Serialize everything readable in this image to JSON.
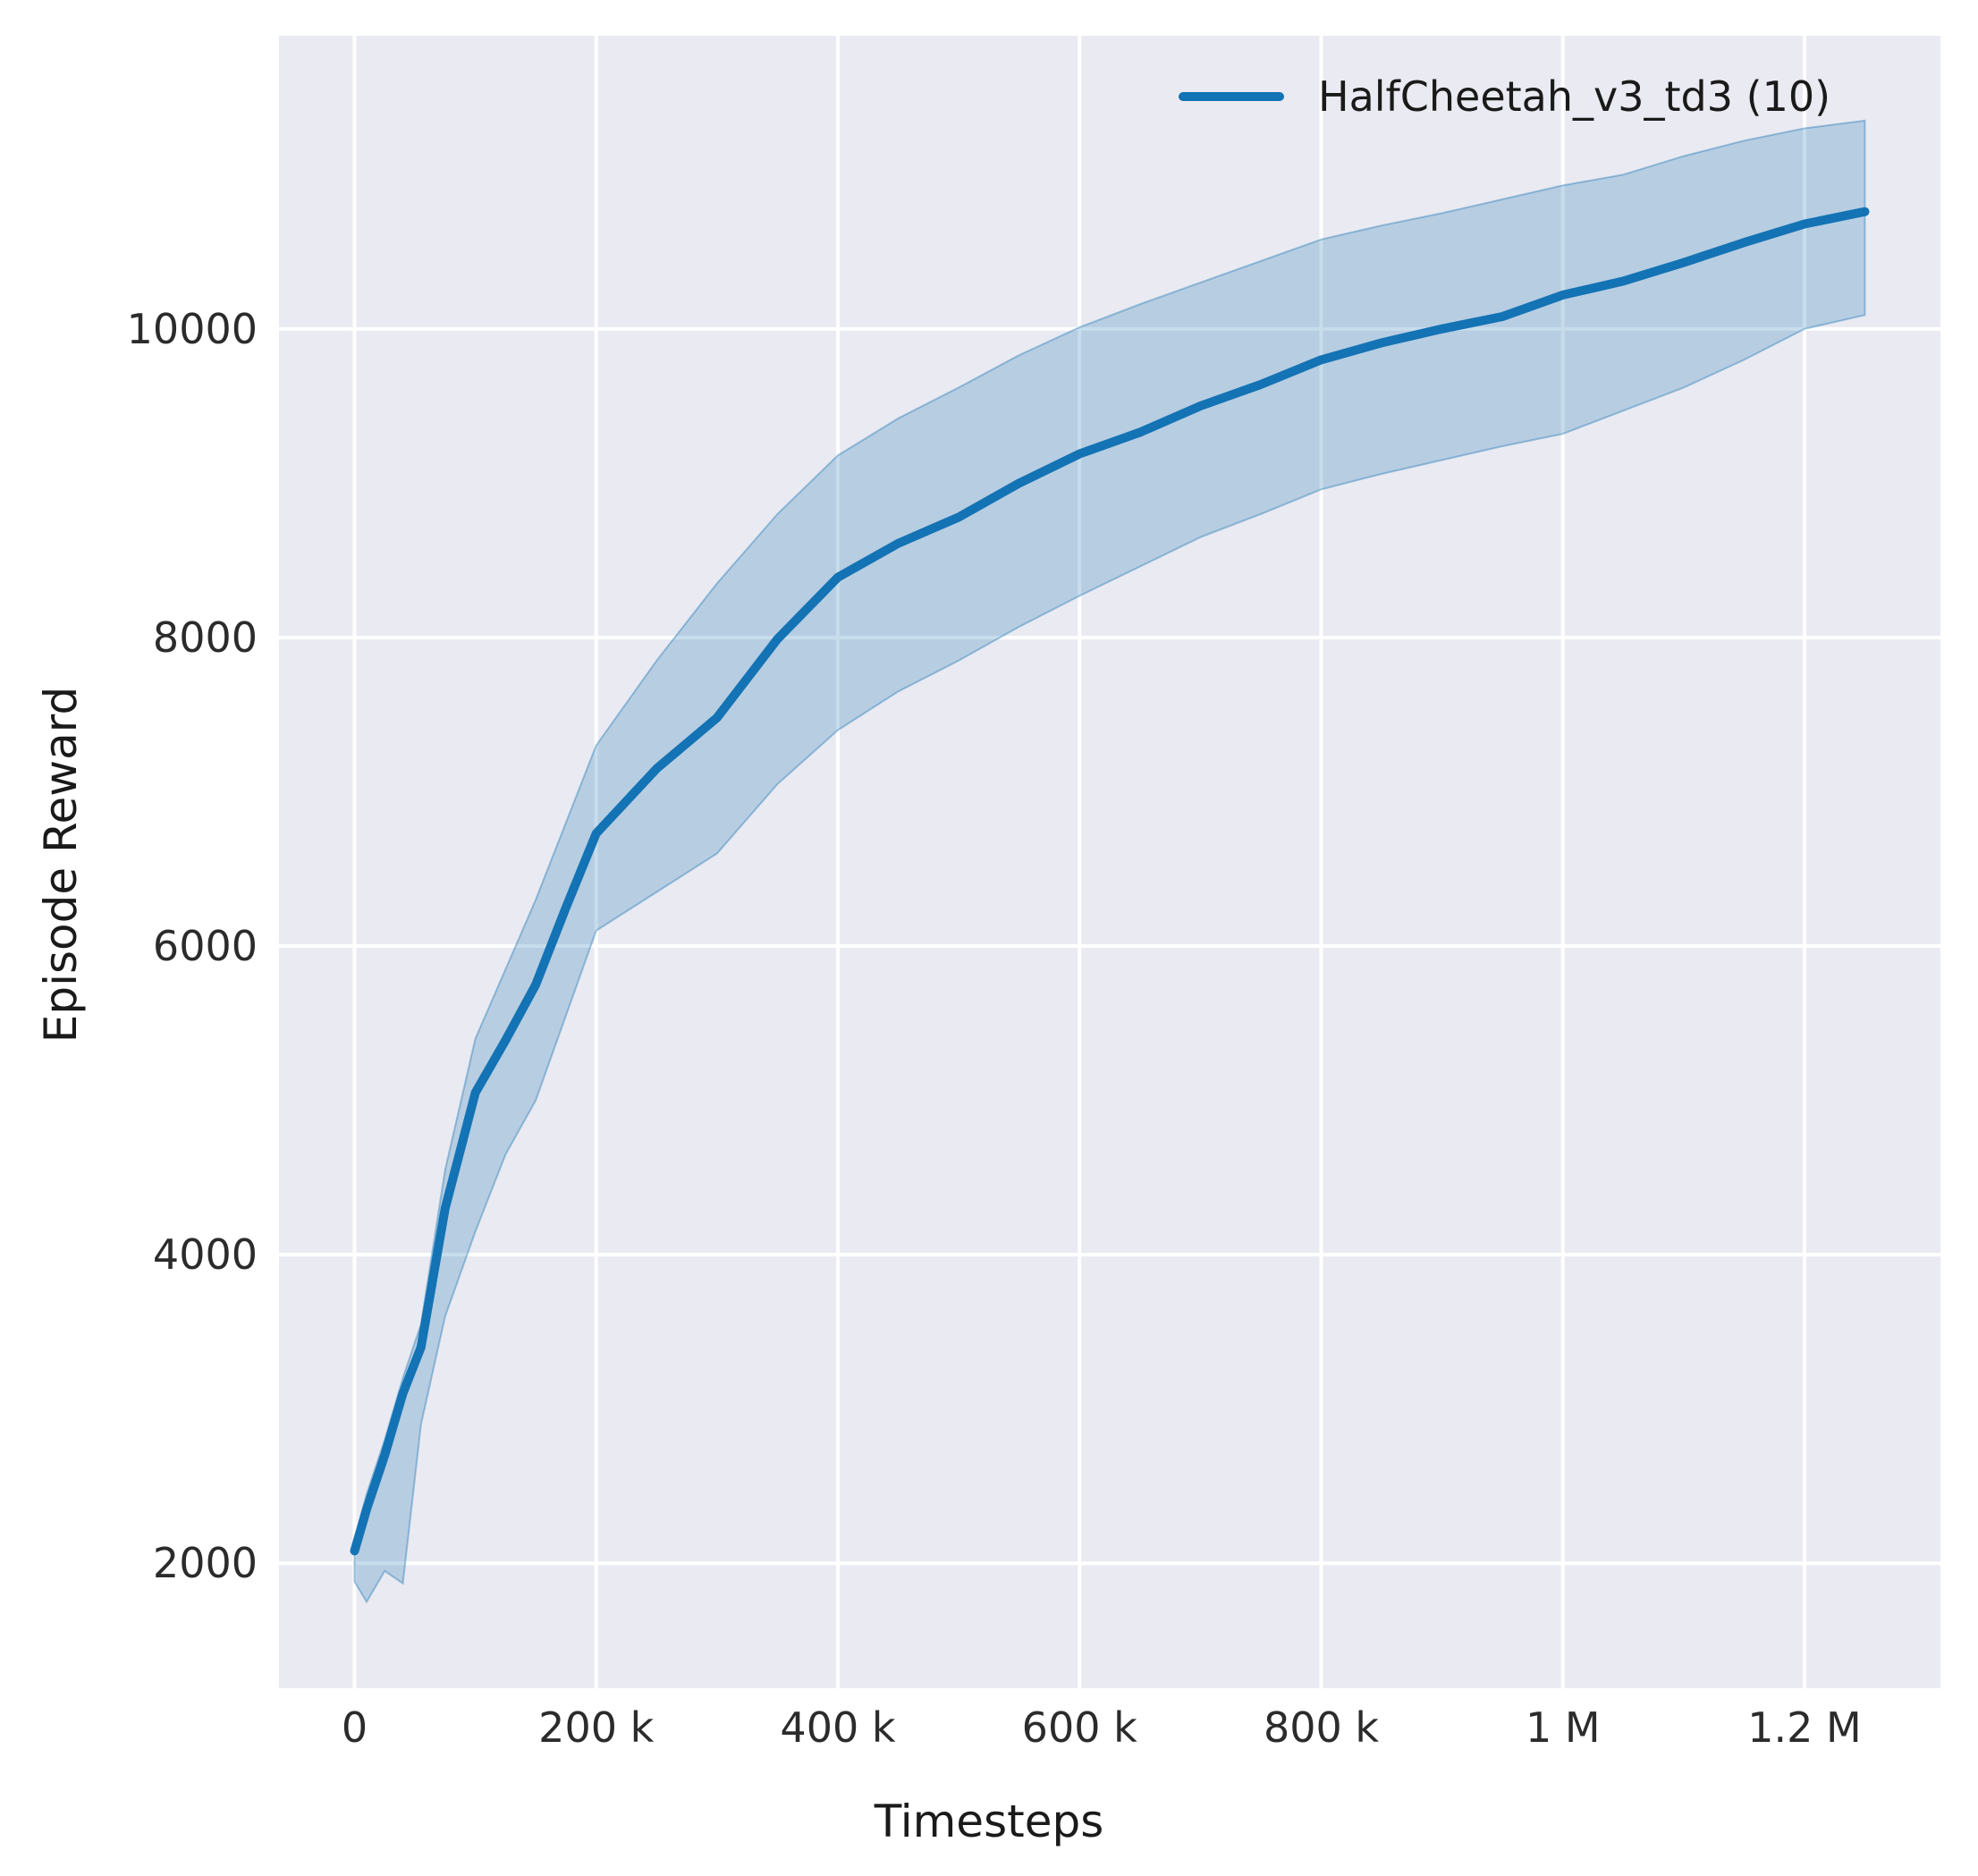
{
  "figure": {
    "xlabel": "Timesteps",
    "ylabel": "Episode Reward",
    "background_color": "#ffffff",
    "plot_background_color": "#eaeaf2",
    "grid_color": "#ffffff",
    "text_color": "#1a1a1a",
    "tick_color": "#2b2b2b"
  },
  "legend": {
    "label": "HalfCheetah_v3_td3 (10)",
    "line_color": "#1373b4",
    "position": "upper-right"
  },
  "chart_data": {
    "type": "line",
    "title": "",
    "xlabel": "Timesteps",
    "ylabel": "Episode Reward",
    "grid": true,
    "xlim": [
      -62500,
      1312500
    ],
    "ylim": [
      1190,
      11900
    ],
    "x_ticks": [
      {
        "value": 0,
        "label": "0"
      },
      {
        "value": 200000,
        "label": "200 k"
      },
      {
        "value": 400000,
        "label": "400 k"
      },
      {
        "value": 600000,
        "label": "600 k"
      },
      {
        "value": 800000,
        "label": "800 k"
      },
      {
        "value": 1000000,
        "label": "1 M"
      },
      {
        "value": 1200000,
        "label": "1.2 M"
      }
    ],
    "y_ticks": [
      {
        "value": 2000,
        "label": "2000"
      },
      {
        "value": 4000,
        "label": "4000"
      },
      {
        "value": 6000,
        "label": "6000"
      },
      {
        "value": 8000,
        "label": "8000"
      },
      {
        "value": 10000,
        "label": "10000"
      }
    ],
    "series": [
      {
        "name": "HalfCheetah_v3_td3 (10)",
        "color": "#1373b4",
        "band_fill_color": "rgba(31,119,180,0.25)",
        "band_edge_color": "rgba(31,119,180,0.40)",
        "x": [
          0,
          10000,
          25000,
          40000,
          55000,
          75000,
          100000,
          125000,
          150000,
          175000,
          200000,
          250000,
          300000,
          350000,
          400000,
          450000,
          500000,
          550000,
          600000,
          650000,
          700000,
          750000,
          800000,
          850000,
          900000,
          950000,
          1000000,
          1050000,
          1100000,
          1150000,
          1200000,
          1250000
        ],
        "mean": [
          2080,
          2350,
          2700,
          3100,
          3400,
          4300,
          5050,
          5390,
          5750,
          6250,
          6730,
          7150,
          7480,
          7990,
          8390,
          8610,
          8780,
          9000,
          9190,
          9330,
          9500,
          9640,
          9800,
          9910,
          10000,
          10080,
          10220,
          10310,
          10430,
          10560,
          10680,
          10760
        ],
        "upper": [
          2150,
          2450,
          2800,
          3200,
          3550,
          4550,
          5400,
          5850,
          6300,
          6800,
          7300,
          7850,
          8350,
          8800,
          9180,
          9420,
          9620,
          9830,
          10010,
          10160,
          10300,
          10440,
          10580,
          10670,
          10750,
          10840,
          10930,
          11000,
          11120,
          11220,
          11300,
          11350
        ],
        "lower": [
          1880,
          1750,
          1950,
          1870,
          2900,
          3600,
          4150,
          4650,
          5000,
          5550,
          6100,
          6350,
          6600,
          7050,
          7400,
          7650,
          7850,
          8070,
          8270,
          8460,
          8650,
          8800,
          8960,
          9060,
          9150,
          9240,
          9320,
          9470,
          9620,
          9800,
          10000,
          10090
        ]
      }
    ]
  }
}
